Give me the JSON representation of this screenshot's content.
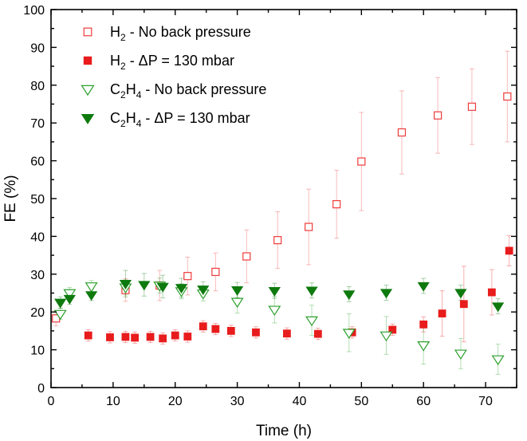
{
  "chart_data": {
    "type": "scatter",
    "xlabel": "Time (h)",
    "ylabel": "FE (%)",
    "xlim": [
      0,
      75
    ],
    "ylim": [
      0,
      100
    ],
    "xticks": [
      "0",
      "10",
      "20",
      "30",
      "40",
      "50",
      "60",
      "70"
    ],
    "yticks": [
      "0",
      "10",
      "20",
      "30",
      "40",
      "50",
      "60",
      "70",
      "80",
      "90",
      "100"
    ],
    "grid": false,
    "legend_position": "top-left",
    "series": [
      {
        "species": "H",
        "sub": "2",
        "condition": " - No back pressure",
        "marker": "square-open",
        "color": "#ef3b3b",
        "points": [
          [
            0.8,
            18.3,
            2
          ],
          [
            12,
            25.8,
            3
          ],
          [
            17.5,
            27,
            4
          ],
          [
            22,
            29.5,
            5
          ],
          [
            26.5,
            30.6,
            5
          ],
          [
            31.5,
            34.7,
            7
          ],
          [
            36.5,
            39,
            7.5
          ],
          [
            41.5,
            42.5,
            10
          ],
          [
            46,
            48.5,
            9
          ],
          [
            50,
            59.8,
            13
          ],
          [
            56.5,
            67.5,
            11
          ],
          [
            62.3,
            72,
            10
          ],
          [
            67.8,
            74.3,
            10
          ],
          [
            73.5,
            77,
            12
          ]
        ]
      },
      {
        "species": "H",
        "sub": "2",
        "condition": " - ΔP = 130 mbar",
        "marker": "square-filled",
        "color": "#e81c1c",
        "points": [
          [
            6,
            13.8,
            1.5
          ],
          [
            9.5,
            13.3,
            1.5
          ],
          [
            12,
            13.4,
            1.5
          ],
          [
            13.5,
            13.2,
            1.5
          ],
          [
            16,
            13.4,
            1.5
          ],
          [
            18,
            13,
            1.5
          ],
          [
            20,
            13.8,
            1.5
          ],
          [
            22,
            13.5,
            1.5
          ],
          [
            24.5,
            16.2,
            1.5
          ],
          [
            26.5,
            15.5,
            1.5
          ],
          [
            29,
            15,
            1.5
          ],
          [
            33,
            14.6,
            1.5
          ],
          [
            38,
            14.3,
            1.5
          ],
          [
            43,
            14.2,
            1.5
          ],
          [
            48.5,
            14.6,
            1.5
          ],
          [
            55,
            15.3,
            1.5
          ],
          [
            60,
            16.7,
            2
          ],
          [
            63,
            19.6,
            6
          ],
          [
            66.5,
            22.1,
            10
          ],
          [
            71,
            25.2,
            6
          ],
          [
            73.8,
            36.2,
            4
          ]
        ]
      },
      {
        "species": "C",
        "sub": "2",
        "species2": "H",
        "sub2": "4",
        "condition": " - No back pressure",
        "marker": "triangle-open",
        "color": "#2ca02c",
        "points": [
          [
            1.5,
            19.5,
            1.5
          ],
          [
            3,
            25,
            1.5
          ],
          [
            6.5,
            26.8,
            1.5
          ],
          [
            12,
            26.5,
            2
          ],
          [
            17.5,
            27,
            2
          ],
          [
            21,
            25.5,
            2
          ],
          [
            24.5,
            24.9,
            2
          ],
          [
            30,
            22.7,
            3
          ],
          [
            36,
            20.6,
            3.5
          ],
          [
            42,
            17.8,
            4
          ],
          [
            48,
            14.5,
            5
          ],
          [
            54,
            13.8,
            5
          ],
          [
            60,
            11.2,
            5
          ],
          [
            66,
            9,
            4
          ],
          [
            72,
            7.5,
            4
          ]
        ]
      },
      {
        "species": "C",
        "sub": "2",
        "species2": "H",
        "sub2": "4",
        "condition": " - ΔP = 130 mbar",
        "marker": "triangle-filled",
        "color": "#0e7a0e",
        "points": [
          [
            1.5,
            22.5,
            1.5
          ],
          [
            3,
            23.5,
            1.5
          ],
          [
            6.5,
            24.5,
            1.5
          ],
          [
            12,
            27.5,
            3.5
          ],
          [
            15,
            27.2,
            3
          ],
          [
            18,
            26.7,
            3
          ],
          [
            21,
            26.4,
            2.5
          ],
          [
            24.5,
            26,
            2
          ],
          [
            30,
            25.8,
            2
          ],
          [
            36,
            25.6,
            2
          ],
          [
            42,
            25.7,
            2
          ],
          [
            48,
            24.7,
            2
          ],
          [
            54,
            25.1,
            2
          ],
          [
            60,
            26.9,
            2
          ],
          [
            66,
            25.1,
            2
          ],
          [
            72,
            21.5,
            2
          ]
        ]
      }
    ]
  }
}
